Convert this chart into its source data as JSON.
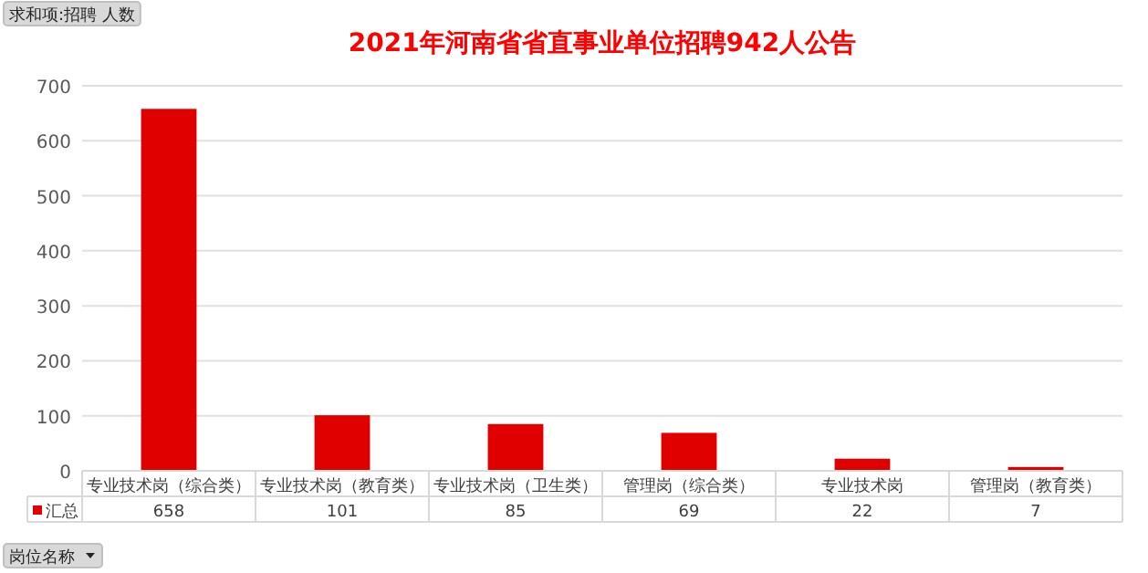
{
  "chart_data": {
    "type": "bar",
    "title": "2021年河南省省直事业单位招聘942人公告",
    "categories": [
      "专业技术岗（综合类）",
      "专业技术岗（教育类）",
      "专业技术岗（卫生类）",
      "管理岗（综合类）",
      "专业技术岗",
      "管理岗（教育类）"
    ],
    "series": [
      {
        "name": "汇总",
        "color": "#e00000",
        "values": [
          658,
          101,
          85,
          69,
          22,
          7
        ]
      }
    ],
    "ylim": [
      0,
      700
    ],
    "yticks": [
      0,
      100,
      200,
      300,
      400,
      500,
      600,
      700
    ],
    "grid": "y",
    "data_labels": true,
    "legend": "bottom",
    "annotations": [
      "求和项:招聘 人数",
      "岗位名称"
    ]
  }
}
